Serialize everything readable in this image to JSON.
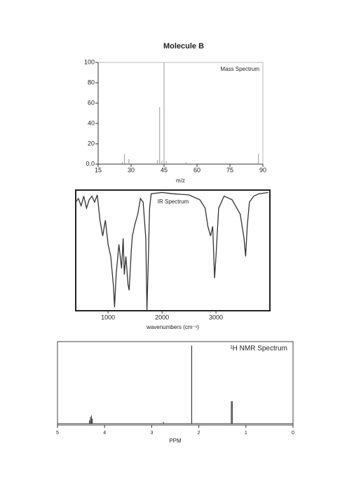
{
  "title": "Molecule B",
  "chart_data": [
    {
      "type": "stem",
      "annotation": "Mass Spectrum",
      "xlabel": "m/z",
      "x": [
        26,
        27,
        29,
        42,
        43,
        44,
        45,
        46,
        55,
        88
      ],
      "values": [
        2,
        10,
        5,
        4,
        56,
        3,
        100,
        3,
        2,
        10
      ],
      "color": "#999999",
      "xlim": [
        15,
        90
      ],
      "xticks": [
        15,
        30,
        45,
        60,
        75,
        90
      ],
      "ylim": [
        0,
        100
      ],
      "yticks": [
        {
          "value": 0,
          "label": "0.0"
        },
        20,
        40,
        60,
        80,
        100
      ]
    },
    {
      "type": "line",
      "annotation": "IR Spectrum",
      "xlabel": "wavenumbers (cm⁻¹)",
      "x": [
        400,
        450,
        500,
        550,
        600,
        650,
        700,
        750,
        800,
        850,
        900,
        950,
        1000,
        1050,
        1100,
        1120,
        1150,
        1200,
        1250,
        1280,
        1300,
        1330,
        1370,
        1390,
        1430,
        1450,
        1500,
        1550,
        1600,
        1650,
        1700,
        1720,
        1745,
        1770,
        1800,
        2000,
        2200,
        2500,
        2700,
        2800,
        2850,
        2900,
        2940,
        2975,
        3000,
        3050,
        3150,
        3300,
        3450,
        3520,
        3550,
        3580,
        3620,
        3700,
        3800,
        3970
      ],
      "values": [
        90,
        93,
        87,
        95,
        85,
        92,
        95,
        90,
        96,
        75,
        62,
        75,
        55,
        45,
        20,
        3,
        30,
        55,
        35,
        60,
        30,
        45,
        22,
        17,
        50,
        62,
        72,
        80,
        93,
        90,
        60,
        0,
        40,
        85,
        97,
        98,
        97,
        96,
        92,
        85,
        70,
        62,
        70,
        27,
        45,
        85,
        95,
        92,
        80,
        60,
        45,
        70,
        90,
        95,
        97,
        98
      ],
      "color": "#333333",
      "xlim": [
        400,
        4000
      ],
      "xticks": [
        1000,
        2000,
        3000
      ],
      "ylim": [
        0,
        100
      ]
    },
    {
      "type": "stem",
      "annotation": "¹H NMR Spectrum",
      "xlabel": "PPM",
      "x": [
        4.32,
        4.3,
        4.28,
        4.26,
        2.75,
        2.15,
        1.31,
        1.29
      ],
      "values": [
        6,
        10,
        12,
        8,
        4,
        100,
        30,
        30
      ],
      "color": "#222222",
      "xlim": [
        5,
        0
      ],
      "xticks": [
        5,
        4,
        3,
        2,
        1,
        0
      ],
      "ylim": [
        0,
        105
      ]
    }
  ]
}
